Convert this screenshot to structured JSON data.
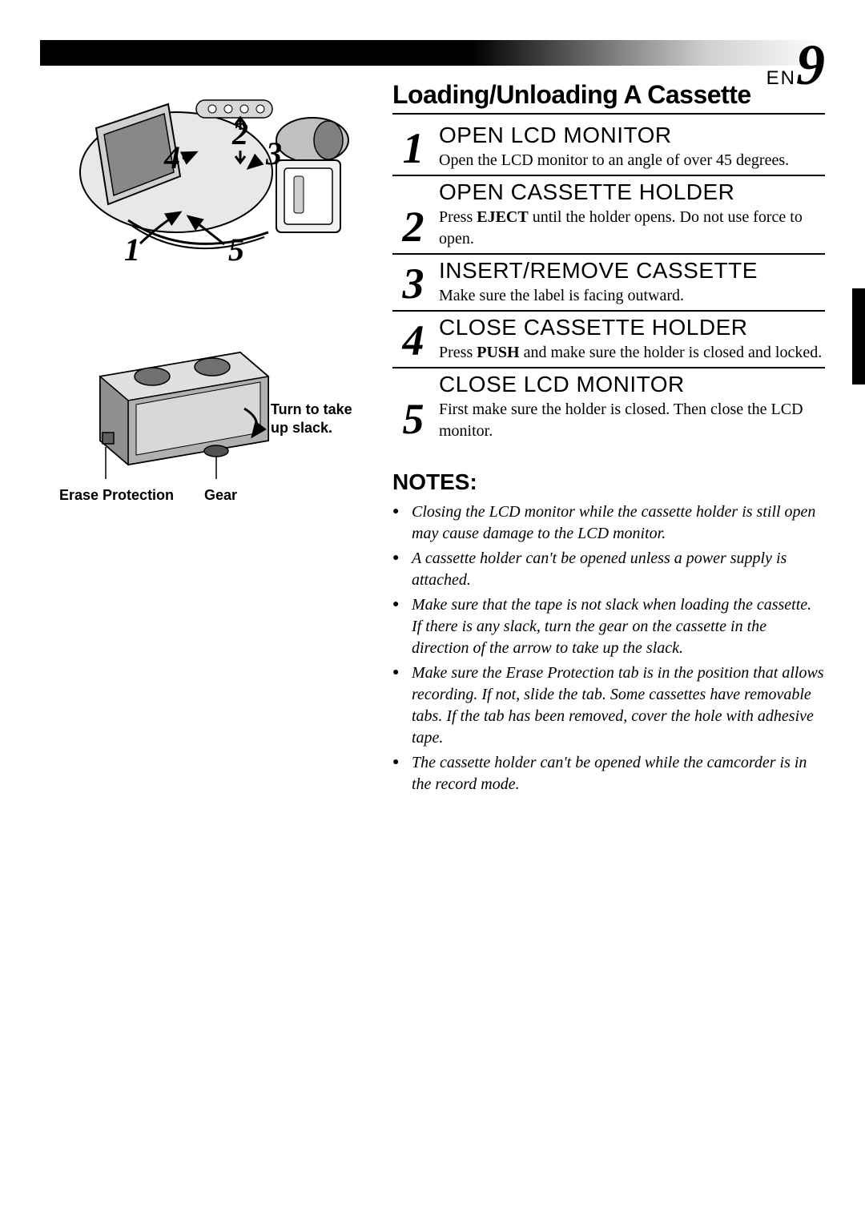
{
  "header": {
    "lang": "EN",
    "page_number": "9"
  },
  "main_title": "Loading/Unloading A Cassette",
  "steps": [
    {
      "num": "1",
      "title": "OPEN LCD MONITOR",
      "desc_html": "Open the LCD monitor to an angle of over 45 degrees."
    },
    {
      "num": "2",
      "title": "OPEN CASSETTE HOLDER",
      "desc_html": "Press <b>EJECT</b> until the holder opens. Do not use force to open."
    },
    {
      "num": "3",
      "title": "INSERT/REMOVE CASSETTE",
      "desc_html": "Make sure the label is facing outward."
    },
    {
      "num": "4",
      "title": "CLOSE CASSETTE HOLDER",
      "desc_html": "Press <b>PUSH</b> and make sure the holder is closed and locked."
    },
    {
      "num": "5",
      "title": "CLOSE LCD MONITOR",
      "desc_html": "First make sure the holder is closed. Then close the LCD monitor."
    }
  ],
  "notes_heading": "NOTES:",
  "notes": [
    "Closing the LCD monitor while the cassette holder is still open may cause damage to the LCD monitor.",
    "A cassette holder can't be opened unless a power supply is attached.",
    "Make sure that the tape is not slack when loading the cassette. If there is any slack, turn the gear on the cassette in the direction of the arrow to take up the slack.",
    "Make sure the Erase Protection tab is in the position that allows recording. If not, slide the tab. Some cassettes have removable tabs. If the tab has been removed, cover the hole with adhesive tape.",
    "The cassette holder can't be opened while the camcorder is in the record mode."
  ],
  "illustration": {
    "camcorder_nums": [
      "1",
      "2",
      "3",
      "4",
      "5"
    ],
    "cassette_labels": {
      "turn_slack": "Turn to take up slack.",
      "erase_protection": "Erase Protection",
      "gear": "Gear"
    }
  }
}
